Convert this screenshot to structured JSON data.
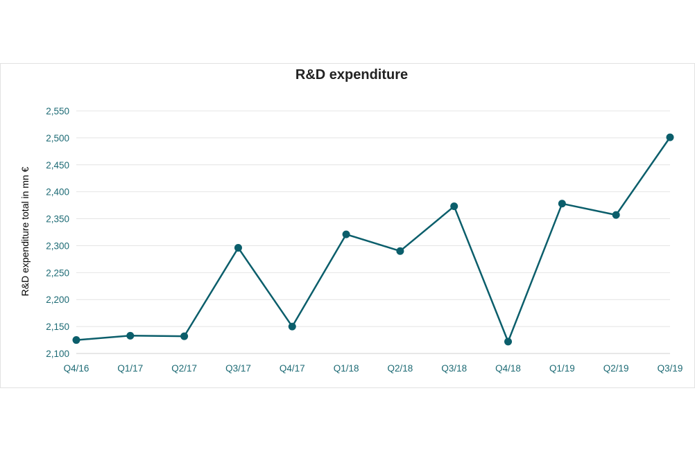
{
  "chart_data": {
    "type": "line",
    "title": "R&D expenditure",
    "xlabel": "",
    "ylabel": "R&D expenditure total in mn €",
    "categories": [
      "Q4/16",
      "Q1/17",
      "Q2/17",
      "Q3/17",
      "Q4/17",
      "Q1/18",
      "Q2/18",
      "Q3/18",
      "Q4/18",
      "Q1/19",
      "Q2/19",
      "Q3/19"
    ],
    "series": [
      {
        "values": [
          2125,
          2133,
          2132,
          2296,
          2150,
          2321,
          2290,
          2373,
          2122,
          2378,
          2357,
          2501
        ]
      }
    ],
    "ylim": [
      2100,
      2550
    ],
    "yticks": [
      "2,100",
      "2,150",
      "2,200",
      "2,250",
      "2,300",
      "2,350",
      "2,400",
      "2,450",
      "2,500",
      "2,550"
    ],
    "yticks_values": [
      2100,
      2150,
      2200,
      2250,
      2300,
      2350,
      2400,
      2450,
      2500,
      2550
    ],
    "grid": true,
    "legend": "none"
  },
  "colors": {
    "line": "#0b5e6b",
    "axis_text": "#1c6a74",
    "grid": "#e4e4e4",
    "axis": "#cfcfcf"
  }
}
